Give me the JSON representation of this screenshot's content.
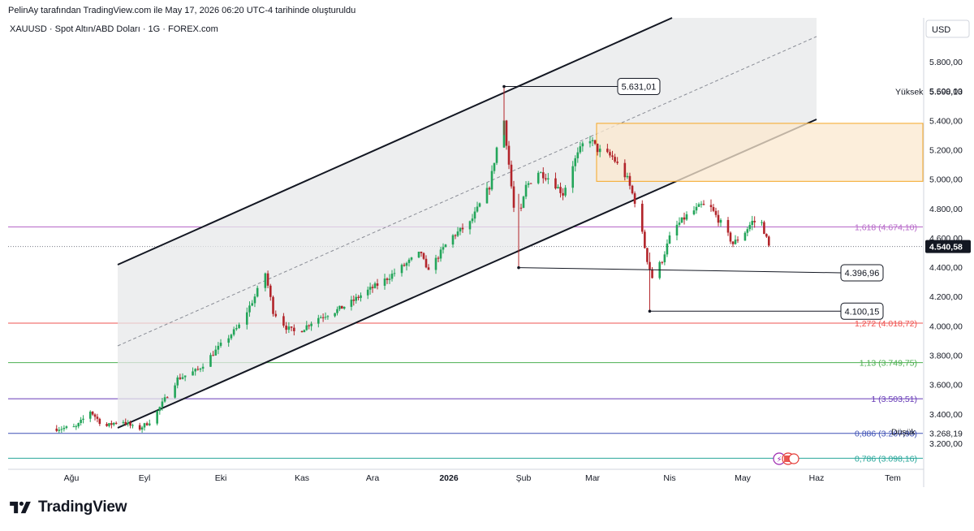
{
  "credit": "PelinAy tarafından TradingView.com ile May 17, 2026 06:20 UTC-4 tarihinde oluşturuldu",
  "brand": {
    "name": "TradingView",
    "icon": "tradingview-logo-icon"
  },
  "chart_data": {
    "type": "candlestick",
    "symbol_title": "XAUUSD · Spot Altın/ABD Doları · 1G · FOREX.com",
    "currency": "USD",
    "ylim": [
      3060,
      6060
    ],
    "y_ticks": [
      "5.800,00",
      "5.600,00",
      "5.400,00",
      "5.200,00",
      "5.000,00",
      "4.800,00",
      "4.600,00",
      "4.400,00",
      "4.200,00",
      "4.000,00",
      "3.800,00",
      "3.600,00",
      "3.400,00",
      "3.200,00"
    ],
    "y_tick_values": [
      5800,
      5600,
      5400,
      5200,
      5000,
      4800,
      4600,
      4400,
      4200,
      4000,
      3800,
      3600,
      3400,
      3200
    ],
    "x_ticks": [
      {
        "label": "Ağu",
        "bold": false
      },
      {
        "label": "Eyl",
        "bold": false
      },
      {
        "label": "Eki",
        "bold": false
      },
      {
        "label": "Kas",
        "bold": false
      },
      {
        "label": "Ara",
        "bold": false
      },
      {
        "label": "2026",
        "bold": true
      },
      {
        "label": "Şub",
        "bold": false
      },
      {
        "label": "Mar",
        "bold": false
      },
      {
        "label": "Nis",
        "bold": false
      },
      {
        "label": "May",
        "bold": false
      },
      {
        "label": "Haz",
        "bold": false
      },
      {
        "label": "Tem",
        "bold": false
      }
    ],
    "last_price": {
      "label": "4.540,58",
      "value": 4540.58
    },
    "high": {
      "label": "Yüksek",
      "value_label": "5.598,13",
      "value": 5598.13
    },
    "low": {
      "label": "Düşük",
      "value_label": "3.268,19",
      "value": 3268.19
    },
    "fib_levels": [
      {
        "label": "1,618 (4.674,10)",
        "value": 4674.1,
        "color": "#b667c8"
      },
      {
        "label": "1,272 (4.018,72)",
        "value": 4018.72,
        "color": "#ef5350"
      },
      {
        "label": "1,13 (3.749,75)",
        "value": 3749.75,
        "color": "#4caf50"
      },
      {
        "label": "1 (3.503,51)",
        "value": 3503.51,
        "color": "#673ab7"
      },
      {
        "label": "0,886 (3.267,93)",
        "value": 3267.93,
        "color": "#3f51b5"
      },
      {
        "label": "0,786 (3.098,16)",
        "value": 3098.16,
        "color": "#26a69a"
      }
    ],
    "annotations": [
      {
        "label": "5.631,01",
        "value": 5631.01
      },
      {
        "label": "4.396,96",
        "value": 4396.96
      },
      {
        "label": "4.100,15",
        "value": 4100.15
      }
    ],
    "channel": {
      "upper_trendline": true,
      "lower_trendline": true,
      "median_dashed": true
    },
    "supply_zone": {
      "top": 5380,
      "bottom": 4985,
      "color": "#f5a623"
    },
    "colors": {
      "up": "#089981",
      "down": "#b2242a",
      "up_fill": "#23a55a"
    },
    "ohlc_monthly_path": [
      {
        "period": "Ağu",
        "open": 3290,
        "high": 3430,
        "low": 3260,
        "close": 3300
      },
      {
        "period": "Eyl",
        "open": 3300,
        "high": 3800,
        "low": 3300,
        "close": 3780
      },
      {
        "period": "Eki",
        "open": 3780,
        "high": 4380,
        "low": 3900,
        "close": 4000
      },
      {
        "period": "Kas",
        "open": 4000,
        "high": 4200,
        "low": 3960,
        "close": 4150
      },
      {
        "period": "Ara",
        "open": 4150,
        "high": 4550,
        "low": 4120,
        "close": 4330
      },
      {
        "period": "Oca",
        "open": 4330,
        "high": 5600,
        "low": 4300,
        "close": 5400
      },
      {
        "period": "Şub",
        "open": 5400,
        "high": 5400,
        "low": 4396.96,
        "close": 5200
      },
      {
        "period": "Mar",
        "open": 5200,
        "high": 5420,
        "low": 4100.15,
        "close": 4450
      },
      {
        "period": "Nis",
        "open": 4450,
        "high": 4880,
        "low": 4400,
        "close": 4700
      },
      {
        "period": "May",
        "open": 4700,
        "high": 4770,
        "low": 4500,
        "close": 4540.58
      }
    ]
  }
}
